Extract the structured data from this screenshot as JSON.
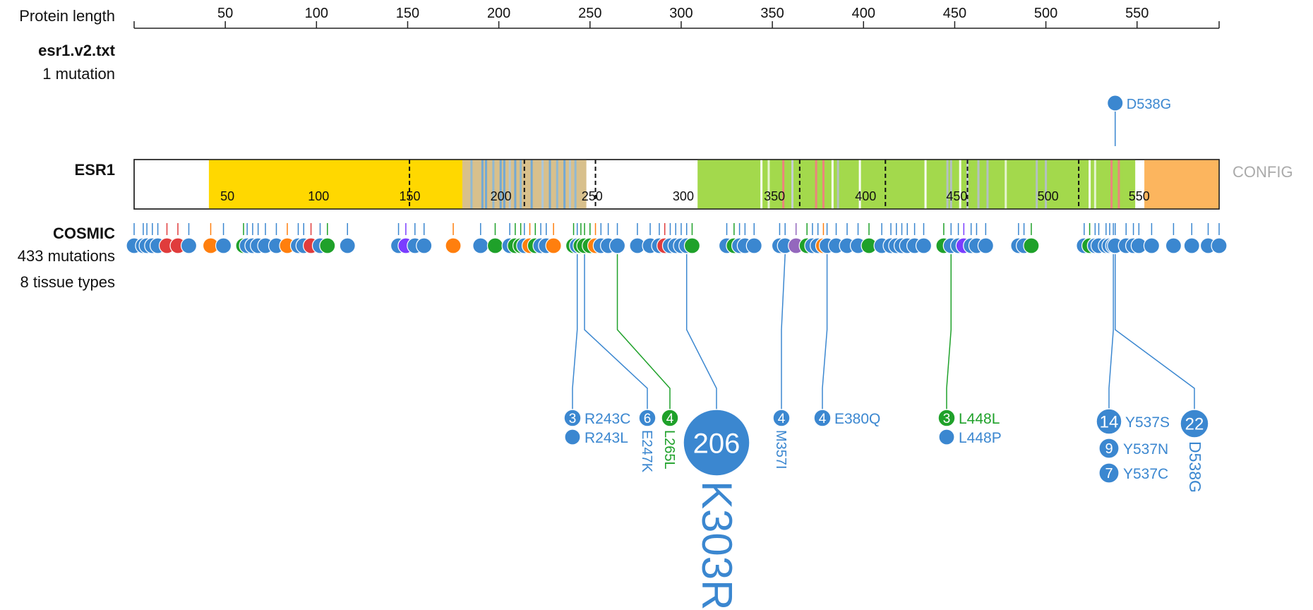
{
  "axis": {
    "label": "Protein length",
    "ticks": [
      50,
      100,
      150,
      200,
      250,
      300,
      350,
      400,
      450,
      500,
      550
    ],
    "max": 595
  },
  "track_user": {
    "name": "esr1.v2.txt",
    "subtitle": "1 mutation",
    "mutations": [
      {
        "pos": 538,
        "label": "D538G",
        "color": "#3b87d0"
      }
    ]
  },
  "gene": {
    "name": "ESR1",
    "config_label": "CONFIG",
    "inner_ticks": [
      50,
      100,
      150,
      200,
      250,
      300,
      350,
      400,
      450,
      500,
      550
    ],
    "domains": [
      {
        "start": 41,
        "end": 180,
        "color": "#ffd800"
      },
      {
        "start": 180,
        "end": 248,
        "color": "#d8c08c"
      },
      {
        "start": 309,
        "end": 549,
        "color": "#a3d94c"
      },
      {
        "start": 554,
        "end": 595,
        "color": "#fcb55e"
      }
    ],
    "stripes": [
      {
        "pos": 185,
        "color": "#8cb8d6"
      },
      {
        "pos": 191,
        "color": "#6ea8d8"
      },
      {
        "pos": 193,
        "color": "#6ea8d8"
      },
      {
        "pos": 197,
        "color": "#8cb8d6"
      },
      {
        "pos": 201,
        "color": "#6ea8d8"
      },
      {
        "pos": 203,
        "color": "#6ea8d8"
      },
      {
        "pos": 206,
        "color": "#a9c7de"
      },
      {
        "pos": 209,
        "color": "#6ea8d8"
      },
      {
        "pos": 212,
        "color": "#8cb8d6"
      },
      {
        "pos": 218,
        "color": "#6ea8d8"
      },
      {
        "pos": 224,
        "color": "#a9c7de"
      },
      {
        "pos": 228,
        "color": "#6ea8d8"
      },
      {
        "pos": 232,
        "color": "#8cb8d6"
      },
      {
        "pos": 236,
        "color": "#6ea8d8"
      },
      {
        "pos": 239,
        "color": "#a9c7de"
      },
      {
        "pos": 242,
        "color": "#8cb8d6"
      },
      {
        "pos": 344,
        "color": "#ffffff"
      },
      {
        "pos": 348,
        "color": "#e9f5d6"
      },
      {
        "pos": 356,
        "color": "#f08080"
      },
      {
        "pos": 361,
        "color": "#c7d0d8"
      },
      {
        "pos": 374,
        "color": "#f08080"
      },
      {
        "pos": 378,
        "color": "#f08080"
      },
      {
        "pos": 383,
        "color": "#ffffff"
      },
      {
        "pos": 386,
        "color": "#b5bfc9"
      },
      {
        "pos": 398,
        "color": "#ffffff"
      },
      {
        "pos": 434,
        "color": "#ffffff"
      },
      {
        "pos": 446,
        "color": "#b5bfc9"
      },
      {
        "pos": 448,
        "color": "#b5bfc9"
      },
      {
        "pos": 453,
        "color": "#ffffff"
      },
      {
        "pos": 457,
        "color": "#c7d0d8"
      },
      {
        "pos": 463,
        "color": "#b5bfc9"
      },
      {
        "pos": 468,
        "color": "#b5bfc9"
      },
      {
        "pos": 478,
        "color": "#e9f5d6"
      },
      {
        "pos": 495,
        "color": "#b5bfc9"
      },
      {
        "pos": 500,
        "color": "#b5bfc9"
      },
      {
        "pos": 524,
        "color": "#ffffff"
      },
      {
        "pos": 527,
        "color": "#e9f5d6"
      },
      {
        "pos": 536,
        "color": "#f08080"
      },
      {
        "pos": 540,
        "color": "#f08080"
      }
    ],
    "exon_boundaries": [
      151,
      214,
      253,
      365,
      412,
      457,
      518
    ]
  },
  "track_cosmic": {
    "name": "COSMIC",
    "subtitle1": "433 mutations",
    "subtitle2": "8 tissue types",
    "colors": {
      "blue": "#3b87d0",
      "green": "#1fa12a",
      "orange": "#ff7f0e",
      "red": "#e03c3c",
      "purple": "#7a3dff",
      "violet": "#9467bd"
    },
    "mutations": [
      {
        "pos": 0,
        "color": "blue"
      },
      {
        "pos": 5,
        "color": "blue"
      },
      {
        "pos": 7,
        "color": "blue"
      },
      {
        "pos": 10,
        "color": "blue"
      },
      {
        "pos": 13,
        "color": "blue"
      },
      {
        "pos": 18,
        "color": "red"
      },
      {
        "pos": 24,
        "color": "red"
      },
      {
        "pos": 30,
        "color": "blue"
      },
      {
        "pos": 42,
        "color": "orange"
      },
      {
        "pos": 49,
        "color": "blue"
      },
      {
        "pos": 60,
        "color": "green"
      },
      {
        "pos": 62,
        "color": "blue"
      },
      {
        "pos": 65,
        "color": "blue"
      },
      {
        "pos": 68,
        "color": "blue"
      },
      {
        "pos": 72,
        "color": "blue"
      },
      {
        "pos": 78,
        "color": "blue"
      },
      {
        "pos": 84,
        "color": "orange"
      },
      {
        "pos": 90,
        "color": "blue"
      },
      {
        "pos": 93,
        "color": "blue"
      },
      {
        "pos": 97,
        "color": "red"
      },
      {
        "pos": 102,
        "color": "blue"
      },
      {
        "pos": 106,
        "color": "green"
      },
      {
        "pos": 117,
        "color": "blue"
      },
      {
        "pos": 145,
        "color": "blue"
      },
      {
        "pos": 149,
        "color": "purple"
      },
      {
        "pos": 154,
        "color": "blue"
      },
      {
        "pos": 159,
        "color": "blue"
      },
      {
        "pos": 175,
        "color": "orange"
      },
      {
        "pos": 190,
        "color": "blue"
      },
      {
        "pos": 198,
        "color": "green"
      },
      {
        "pos": 206,
        "color": "blue"
      },
      {
        "pos": 209,
        "color": "green"
      },
      {
        "pos": 212,
        "color": "green"
      },
      {
        "pos": 214,
        "color": "blue"
      },
      {
        "pos": 217,
        "color": "orange"
      },
      {
        "pos": 220,
        "color": "green"
      },
      {
        "pos": 223,
        "color": "blue"
      },
      {
        "pos": 226,
        "color": "blue"
      },
      {
        "pos": 230,
        "color": "orange"
      },
      {
        "pos": 241,
        "color": "green"
      },
      {
        "pos": 243,
        "color": "blue"
      },
      {
        "pos": 245,
        "color": "green"
      },
      {
        "pos": 247,
        "color": "green"
      },
      {
        "pos": 250,
        "color": "green"
      },
      {
        "pos": 253,
        "color": "orange"
      },
      {
        "pos": 256,
        "color": "blue"
      },
      {
        "pos": 260,
        "color": "blue"
      },
      {
        "pos": 265,
        "color": "blue"
      },
      {
        "pos": 276,
        "color": "blue"
      },
      {
        "pos": 283,
        "color": "blue"
      },
      {
        "pos": 288,
        "color": "blue"
      },
      {
        "pos": 291,
        "color": "red"
      },
      {
        "pos": 294,
        "color": "blue"
      },
      {
        "pos": 297,
        "color": "blue"
      },
      {
        "pos": 300,
        "color": "blue"
      },
      {
        "pos": 303,
        "color": "blue"
      },
      {
        "pos": 306,
        "color": "green"
      },
      {
        "pos": 325,
        "color": "blue"
      },
      {
        "pos": 329,
        "color": "green"
      },
      {
        "pos": 332,
        "color": "blue"
      },
      {
        "pos": 335,
        "color": "blue"
      },
      {
        "pos": 340,
        "color": "blue"
      },
      {
        "pos": 354,
        "color": "blue"
      },
      {
        "pos": 357,
        "color": "blue"
      },
      {
        "pos": 363,
        "color": "violet"
      },
      {
        "pos": 369,
        "color": "green"
      },
      {
        "pos": 372,
        "color": "blue"
      },
      {
        "pos": 375,
        "color": "blue"
      },
      {
        "pos": 378,
        "color": "orange"
      },
      {
        "pos": 380,
        "color": "blue"
      },
      {
        "pos": 385,
        "color": "blue"
      },
      {
        "pos": 391,
        "color": "blue"
      },
      {
        "pos": 397,
        "color": "blue"
      },
      {
        "pos": 403,
        "color": "green"
      },
      {
        "pos": 410,
        "color": "blue"
      },
      {
        "pos": 415,
        "color": "blue"
      },
      {
        "pos": 418,
        "color": "blue"
      },
      {
        "pos": 421,
        "color": "blue"
      },
      {
        "pos": 424,
        "color": "blue"
      },
      {
        "pos": 428,
        "color": "blue"
      },
      {
        "pos": 433,
        "color": "blue"
      },
      {
        "pos": 444,
        "color": "green"
      },
      {
        "pos": 448,
        "color": "blue"
      },
      {
        "pos": 452,
        "color": "blue"
      },
      {
        "pos": 455,
        "color": "purple"
      },
      {
        "pos": 459,
        "color": "blue"
      },
      {
        "pos": 462,
        "color": "blue"
      },
      {
        "pos": 467,
        "color": "blue"
      },
      {
        "pos": 485,
        "color": "blue"
      },
      {
        "pos": 488,
        "color": "blue"
      },
      {
        "pos": 492,
        "color": "green"
      },
      {
        "pos": 521,
        "color": "blue"
      },
      {
        "pos": 524,
        "color": "green"
      },
      {
        "pos": 527,
        "color": "blue"
      },
      {
        "pos": 529,
        "color": "blue"
      },
      {
        "pos": 533,
        "color": "blue"
      },
      {
        "pos": 535,
        "color": "blue"
      },
      {
        "pos": 537,
        "color": "blue"
      },
      {
        "pos": 538,
        "color": "blue"
      },
      {
        "pos": 544,
        "color": "blue"
      },
      {
        "pos": 548,
        "color": "blue"
      },
      {
        "pos": 551,
        "color": "blue"
      },
      {
        "pos": 558,
        "color": "blue"
      },
      {
        "pos": 570,
        "color": "blue"
      },
      {
        "pos": 580,
        "color": "blue"
      },
      {
        "pos": 589,
        "color": "blue"
      },
      {
        "pos": 595,
        "color": "blue"
      }
    ],
    "hotspots": [
      {
        "pos": 243,
        "bx": 811,
        "color": "blue",
        "count": "3",
        "label": "R243C",
        "orient": "h",
        "extra": "R243L",
        "extra_count": ""
      },
      {
        "pos": 247,
        "bx": 917,
        "color": "blue",
        "count": "6",
        "label": "E247K",
        "orient": "v"
      },
      {
        "pos": 265,
        "bx": 949,
        "color": "green",
        "count": "4",
        "label": "L265L",
        "orient": "v"
      },
      {
        "pos": 303,
        "bx": 1015,
        "color": "blue",
        "count": "206",
        "label": "K303R",
        "orient": "big"
      },
      {
        "pos": 357,
        "bx": 1107,
        "color": "blue",
        "count": "4",
        "label": "M357I",
        "orient": "v"
      },
      {
        "pos": 380,
        "bx": 1165,
        "color": "blue",
        "count": "4",
        "label": "E380Q",
        "orient": "h"
      },
      {
        "pos": 448,
        "bx": 1341,
        "color": "green",
        "count": "3",
        "label": "L448L",
        "orient": "h",
        "extra": "L448P",
        "extra_count": ""
      },
      {
        "pos": 537,
        "bx": 1571,
        "color": "blue",
        "count": "14",
        "label": "Y537S",
        "orient": "h3",
        "extra": "Y537N",
        "extra_count": "9",
        "extra2": "Y537C",
        "extra2_count": "7"
      },
      {
        "pos": 538,
        "bx": 1692,
        "color": "blue",
        "count": "22",
        "label": "D538G",
        "orient": "v22"
      }
    ]
  }
}
